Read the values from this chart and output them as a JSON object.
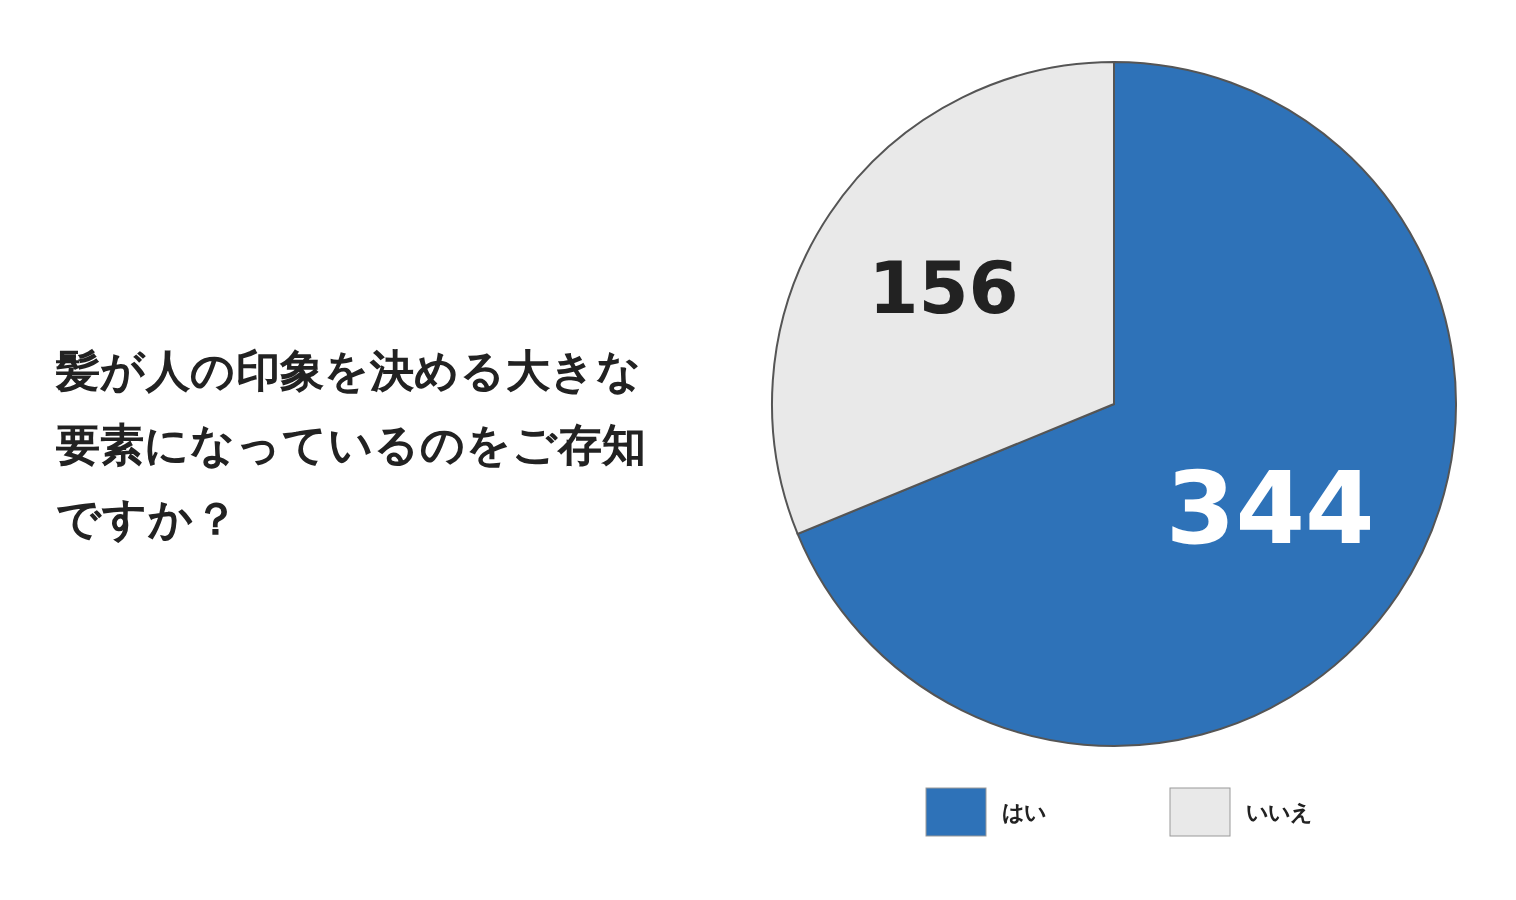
{
  "chart_data": {
    "type": "pie",
    "title": "髪が人の印象を決める大きな要素になっているのをご存知ですか？",
    "categories": [
      "はい",
      "いいえ"
    ],
    "values": [
      344,
      156
    ],
    "colors": [
      "#2e72b8",
      "#e9e9e9"
    ],
    "data_labels": true,
    "legend": "bottom"
  }
}
